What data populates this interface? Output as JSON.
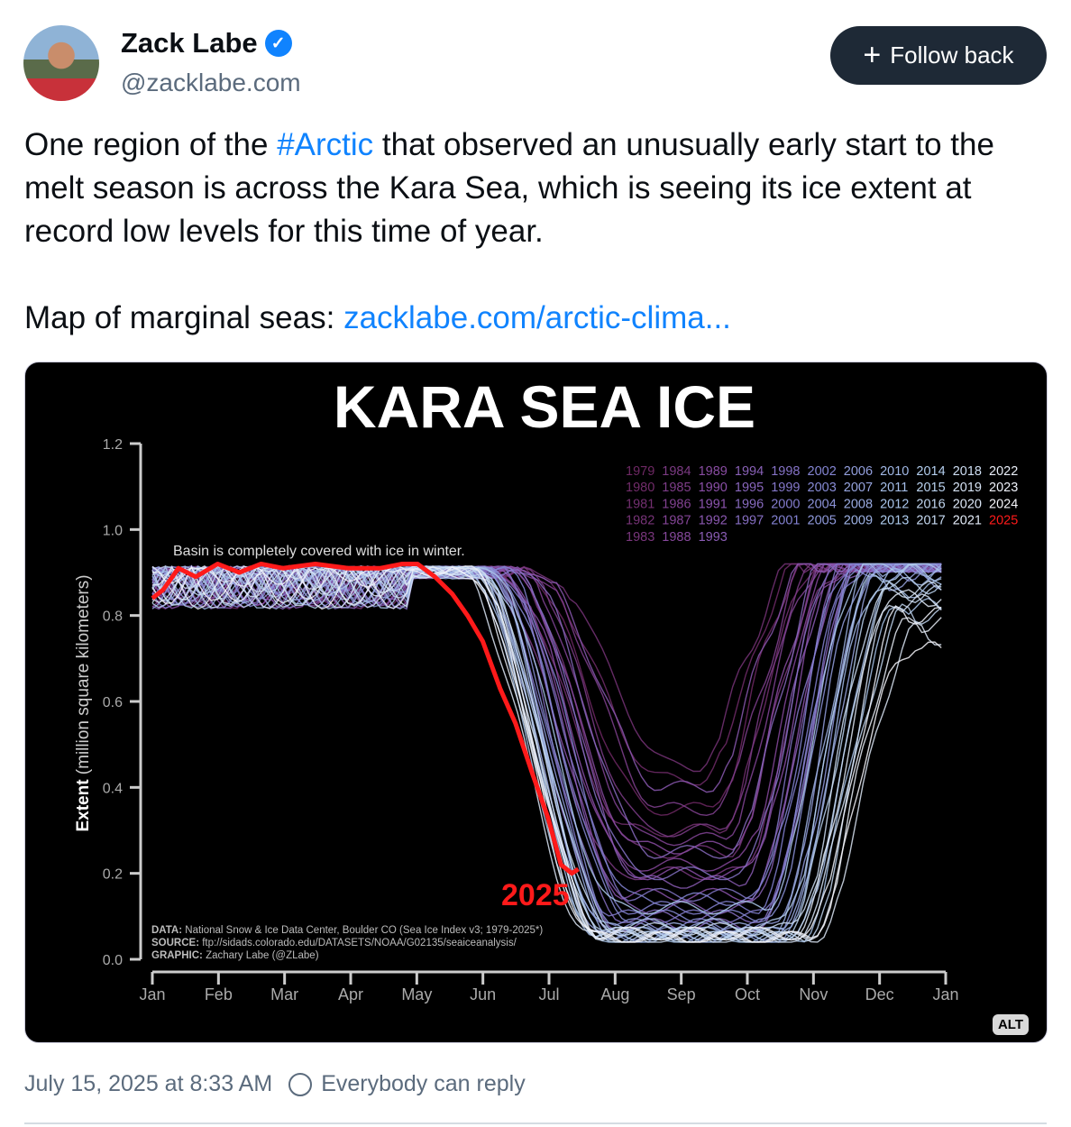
{
  "post": {
    "author": "Zack Labe",
    "handle": "@zacklabe.com",
    "follow_label": "Follow back",
    "text_before": "One region of the ",
    "hashtag": "#Arctic",
    "text_after": " that observed an unusually early start to the melt season is across the Kara Sea, which is seeing its ice extent at record low levels for this time of year.",
    "map_label": "Map of marginal seas: ",
    "map_link": "zacklabe.com/arctic-clima...",
    "alt_badge": "ALT",
    "timestamp": "July 15, 2025 at 8:33 AM",
    "reply_setting": "Everybody can reply"
  },
  "chart_data": {
    "type": "line",
    "title": "KARA SEA ICE",
    "ylabel_bold": "Extent",
    "ylabel": " (million square kilometers)",
    "ylim": [
      0,
      1.2
    ],
    "yticks": [
      "0.0",
      "0.2",
      "0.4",
      "0.6",
      "0.8",
      "1.0",
      "1.2"
    ],
    "xticks": [
      "Jan",
      "Feb",
      "Mar",
      "Apr",
      "May",
      "Jun",
      "Jul",
      "Aug",
      "Sep",
      "Oct",
      "Nov",
      "Dec",
      "Jan"
    ],
    "annotation": "Basin is completely covered with ice in winter.",
    "highlight_label": "2025",
    "credits": [
      {
        "k": "DATA:",
        "v": " National Snow & Ice Data Center, Boulder CO (Sea Ice Index v3; 1979-2025*)"
      },
      {
        "k": "SOURCE:",
        "v": " ftp://sidads.colorado.edu/DATASETS/NOAA/G02135/seaiceanalysis/"
      },
      {
        "k": "GRAPHIC:",
        "v": " Zachary Labe (@ZLabe)"
      }
    ],
    "series_2025": {
      "name": "2025",
      "color": "#ff1a1a",
      "day": [
        0,
        5,
        12,
        20,
        30,
        40,
        50,
        60,
        75,
        90,
        105,
        115,
        122,
        130,
        138,
        145,
        152,
        160,
        167,
        175,
        182,
        188,
        193,
        196
      ],
      "extent": [
        0.84,
        0.86,
        0.91,
        0.89,
        0.92,
        0.9,
        0.92,
        0.91,
        0.92,
        0.91,
        0.91,
        0.92,
        0.92,
        0.89,
        0.85,
        0.8,
        0.74,
        0.63,
        0.55,
        0.43,
        0.33,
        0.22,
        0.2,
        0.21
      ]
    },
    "historical": [
      [
        1979,
        200,
        0.35,
        265,
        0.92
      ],
      [
        1980,
        205,
        0.42,
        262,
        0.92
      ],
      [
        1981,
        190,
        0.3,
        270,
        0.92
      ],
      [
        1982,
        210,
        0.45,
        260,
        0.92
      ],
      [
        1983,
        195,
        0.25,
        275,
        0.92
      ],
      [
        1984,
        185,
        0.2,
        280,
        0.92
      ],
      [
        1985,
        200,
        0.3,
        270,
        0.92
      ],
      [
        1986,
        205,
        0.35,
        268,
        0.92
      ],
      [
        1987,
        198,
        0.28,
        272,
        0.92
      ],
      [
        1988,
        190,
        0.22,
        278,
        0.92
      ],
      [
        1989,
        195,
        0.26,
        275,
        0.92
      ],
      [
        1990,
        192,
        0.2,
        282,
        0.92
      ],
      [
        1991,
        188,
        0.15,
        285,
        0.92
      ],
      [
        1992,
        205,
        0.4,
        265,
        0.92
      ],
      [
        1993,
        196,
        0.18,
        280,
        0.92
      ],
      [
        1994,
        190,
        0.12,
        285,
        0.92
      ],
      [
        1995,
        182,
        0.08,
        290,
        0.92
      ],
      [
        1996,
        200,
        0.25,
        275,
        0.92
      ],
      [
        1997,
        185,
        0.1,
        290,
        0.92
      ],
      [
        1998,
        195,
        0.2,
        280,
        0.92
      ],
      [
        1999,
        190,
        0.15,
        284,
        0.92
      ],
      [
        2000,
        183,
        0.1,
        290,
        0.92
      ],
      [
        2001,
        188,
        0.12,
        288,
        0.92
      ],
      [
        2002,
        192,
        0.14,
        286,
        0.92
      ],
      [
        2003,
        188,
        0.1,
        290,
        0.92
      ],
      [
        2004,
        185,
        0.08,
        292,
        0.92
      ],
      [
        2005,
        180,
        0.06,
        298,
        0.9
      ],
      [
        2006,
        183,
        0.07,
        295,
        0.92
      ],
      [
        2007,
        178,
        0.05,
        300,
        0.88
      ],
      [
        2008,
        182,
        0.06,
        298,
        0.9
      ],
      [
        2009,
        180,
        0.07,
        296,
        0.91
      ],
      [
        2010,
        178,
        0.06,
        300,
        0.89
      ],
      [
        2011,
        176,
        0.05,
        305,
        0.86
      ],
      [
        2012,
        174,
        0.05,
        308,
        0.82
      ],
      [
        2013,
        185,
        0.12,
        292,
        0.92
      ],
      [
        2014,
        182,
        0.08,
        298,
        0.9
      ],
      [
        2015,
        180,
        0.06,
        302,
        0.87
      ],
      [
        2016,
        178,
        0.05,
        310,
        0.8
      ],
      [
        2017,
        176,
        0.06,
        305,
        0.85
      ],
      [
        2018,
        180,
        0.07,
        303,
        0.86
      ],
      [
        2019,
        178,
        0.05,
        308,
        0.83
      ],
      [
        2020,
        172,
        0.05,
        315,
        0.75
      ],
      [
        2021,
        176,
        0.06,
        306,
        0.84
      ],
      [
        2022,
        174,
        0.05,
        312,
        0.78
      ],
      [
        2023,
        177,
        0.06,
        310,
        0.8
      ],
      [
        2024,
        175,
        0.05,
        312,
        0.72
      ]
    ]
  }
}
